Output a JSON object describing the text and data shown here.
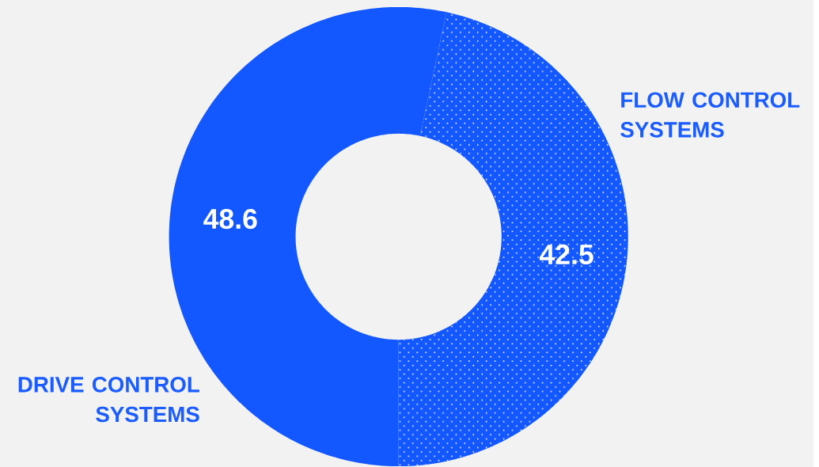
{
  "chart_data": {
    "type": "donut",
    "categories": [
      "DRIVE CONTROL SYSTEMS",
      "FLOW CONTROL SYSTEMS"
    ],
    "values": [
      48.6,
      42.5
    ],
    "colors": [
      "#1257ff",
      "#1257ff"
    ],
    "data_labels": true
  }
}
